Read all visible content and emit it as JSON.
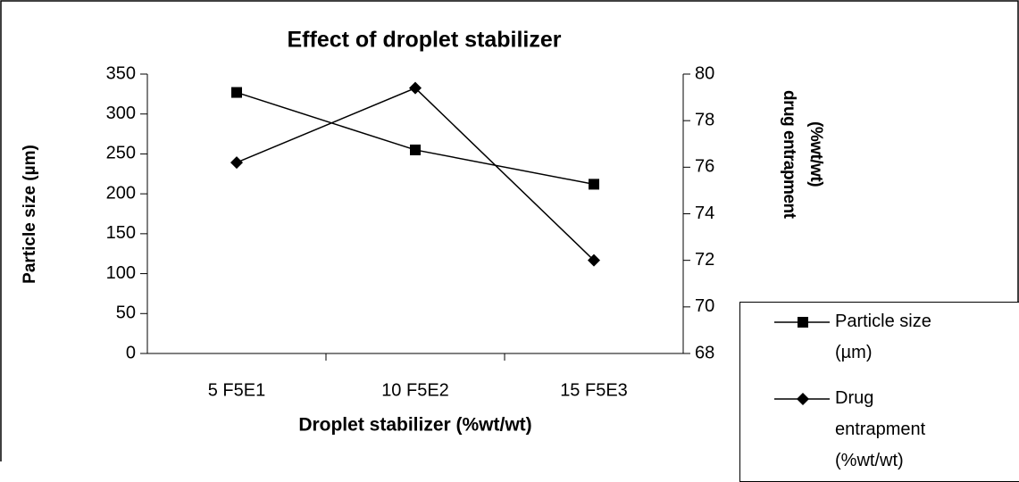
{
  "chart_data": {
    "type": "line",
    "title": "Effect of droplet stabilizer",
    "x_label": "Droplet stabilizer (%wt/wt)",
    "y_label": "Particle size (µm)",
    "y2_label": "drug entrapment (%wt/wt)",
    "categories": [
      "5 F5E1",
      "10 F5E2",
      "15 F5E3"
    ],
    "series": [
      {
        "name": "Particle size (µm)",
        "color": "#000000",
        "marker": "square",
        "values": [
          327,
          255,
          212
        ]
      },
      {
        "name": "Drug entrapment (%wt/wt)",
        "color": "#000000",
        "marker": "diamond",
        "axis": "y2",
        "values": [
          76.2,
          79.4,
          72.0
        ]
      }
    ],
    "ylim": [
      0,
      350
    ],
    "yticks": [
      0,
      50,
      100,
      150,
      200,
      250,
      300,
      350
    ],
    "y2lim": [
      68,
      80
    ],
    "y2ticks": [
      68,
      70,
      72,
      74,
      76,
      78,
      80
    ],
    "grid": false
  }
}
